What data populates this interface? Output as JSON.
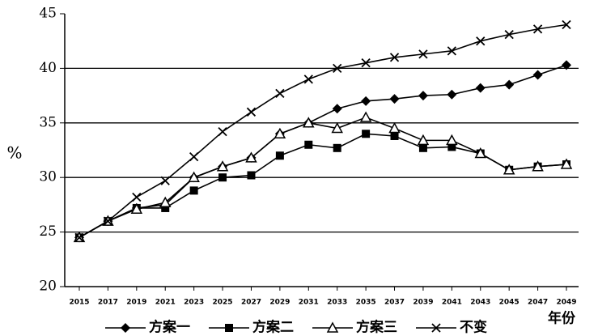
{
  "chart_data": {
    "type": "line",
    "x": [
      2015,
      2017,
      2019,
      2021,
      2023,
      2025,
      2027,
      2029,
      2031,
      2033,
      2035,
      2037,
      2039,
      2041,
      2043,
      2045,
      2047,
      2049
    ],
    "xlabel": "年份",
    "ylabel": "%",
    "ylim": [
      20,
      45
    ],
    "yticks": [
      20,
      25,
      30,
      35,
      40,
      45
    ],
    "grid": true,
    "series": [
      {
        "name": "方案一",
        "color": "#000000",
        "marker": "diamond",
        "values": [
          24.5,
          26,
          27.2,
          27.5,
          30,
          31,
          31.8,
          34,
          35,
          36.3,
          37,
          37.2,
          37.5,
          37.6,
          38.2,
          38.5,
          39.4,
          40.3
        ]
      },
      {
        "name": "方案二",
        "color": "#000000",
        "marker": "square",
        "values": [
          24.5,
          26,
          27.2,
          27.2,
          28.8,
          30,
          30.2,
          32,
          33,
          32.7,
          34,
          33.8,
          32.7,
          32.8,
          32.2,
          30.7,
          31,
          31.2
        ]
      },
      {
        "name": "方案三",
        "color": "#000000",
        "marker": "triangle",
        "values": [
          24.5,
          26,
          27.1,
          27.7,
          30,
          31,
          31.8,
          34,
          35,
          34.5,
          35.5,
          34.5,
          33.4,
          33.4,
          32.2,
          30.7,
          31,
          31.2
        ]
      },
      {
        "name": "不变",
        "color": "#000000",
        "marker": "cross",
        "values": [
          24.5,
          26,
          28.2,
          29.7,
          31.9,
          34.2,
          36,
          37.7,
          39,
          40,
          40.5,
          41,
          41.3,
          41.6,
          42.5,
          43.1,
          43.6,
          44
        ]
      }
    ]
  }
}
